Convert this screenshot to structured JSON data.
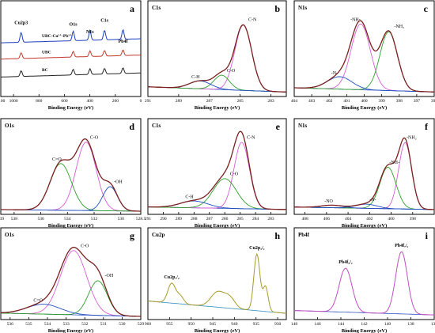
{
  "figure_caption": "",
  "chart_data": [
    {
      "type": "line",
      "panel_label": "a",
      "title": "",
      "xlabel": "Binding Energy (eV)",
      "ylabel": "",
      "xlim": [
        1100,
        0
      ],
      "x_reversed": true,
      "xticks": [
        1100,
        1000,
        800,
        600,
        400,
        200,
        0
      ],
      "grid": false,
      "annotations": [
        {
          "text": "Cu2p3",
          "x": 940,
          "level": 0.85
        },
        {
          "text": "O1s",
          "x": 531,
          "level": 0.83
        },
        {
          "text": "N1s",
          "x": 399,
          "level": 0.74
        },
        {
          "text": "C1s",
          "x": 285,
          "level": 0.88
        },
        {
          "text": "Pb4f",
          "x": 140,
          "level": 0.62
        }
      ],
      "series": [
        {
          "name": "UBC-Cu²⁺-Pb²⁺",
          "color": "#1f3fbf",
          "offset": 0.62
        },
        {
          "name": "UBC",
          "color": "#c0392b",
          "offset": 0.42
        },
        {
          "name": "BC",
          "color": "#222222",
          "offset": 0.2
        }
      ]
    },
    {
      "type": "line",
      "panel_label": "b",
      "title": "C1s",
      "xlabel": "Binding Energy (eV)",
      "ylabel": "",
      "xlim": [
        291,
        282
      ],
      "x_reversed": true,
      "xticks": [
        291,
        289,
        287,
        285,
        283
      ],
      "grid": false,
      "peaks": [
        {
          "label": "C-N",
          "center": 284.8,
          "height": 1.0,
          "width": 0.55,
          "color": "#d65fd6"
        },
        {
          "label": "C-O",
          "center": 286.2,
          "height": 0.22,
          "width": 0.5,
          "color": "#2ca02c"
        },
        {
          "label": "C-H",
          "center": 287.6,
          "height": 0.12,
          "width": 0.7,
          "color": "#1f4fbf"
        }
      ],
      "background": [
        0.1,
        0.02
      ]
    },
    {
      "type": "line",
      "panel_label": "c",
      "title": "N1s",
      "xlabel": "Binding Energy (eV)",
      "ylabel": "",
      "xlim": [
        404,
        396
      ],
      "x_reversed": true,
      "xticks": [
        404,
        403,
        402,
        401,
        400,
        399,
        398,
        397,
        396
      ],
      "grid": false,
      "peaks": [
        {
          "label": "-NH-",
          "center": 400.2,
          "height": 0.95,
          "width": 0.55,
          "color": "#d65fd6"
        },
        {
          "label": "-NH₂",
          "center": 398.6,
          "height": 0.85,
          "width": 0.5,
          "color": "#2ca02c"
        },
        {
          "label": "-N-",
          "center": 401.4,
          "height": 0.18,
          "width": 0.7,
          "color": "#1f4fbf"
        }
      ],
      "background": [
        0.08,
        0.02
      ]
    },
    {
      "type": "line",
      "panel_label": "d",
      "title": "O1s",
      "xlabel": "Binding Energy (eV)",
      "ylabel": "",
      "xlim": [
        539,
        528.5
      ],
      "x_reversed": true,
      "xticks": [
        539,
        538,
        536,
        534,
        532,
        530,
        528.5
      ],
      "grid": false,
      "peaks": [
        {
          "label": "C-O",
          "center": 532.6,
          "height": 0.85,
          "width": 0.75,
          "color": "#d65fd6"
        },
        {
          "label": "C=O",
          "center": 534.5,
          "height": 0.58,
          "width": 0.8,
          "color": "#2ca02c"
        },
        {
          "label": "-OH",
          "center": 530.8,
          "height": 0.3,
          "width": 0.55,
          "color": "#1f4fbf"
        }
      ],
      "background": [
        0.02,
        0.0
      ]
    },
    {
      "type": "line",
      "panel_label": "e",
      "title": "C1s",
      "xlabel": "Binding Energy (eV)",
      "ylabel": "",
      "xlim": [
        291,
        282
      ],
      "x_reversed": true,
      "xticks": [
        291,
        290,
        289,
        288,
        287,
        286,
        285,
        284,
        283
      ],
      "grid": false,
      "peaks": [
        {
          "label": "C-N",
          "center": 284.9,
          "height": 0.78,
          "width": 0.5,
          "color": "#d65fd6"
        },
        {
          "label": "C-O",
          "center": 286.0,
          "height": 0.35,
          "width": 0.75,
          "color": "#2ca02c"
        },
        {
          "label": "C-H",
          "center": 288.0,
          "height": 0.08,
          "width": 0.9,
          "color": "#1f4fbf"
        }
      ],
      "background": [
        0.05,
        0.02
      ]
    },
    {
      "type": "line",
      "panel_label": "f",
      "title": "N1s",
      "xlabel": "Binding Energy (eV)",
      "ylabel": "",
      "xlim": [
        409,
        396
      ],
      "x_reversed": true,
      "xticks": [
        408,
        406,
        404,
        402,
        400,
        398
      ],
      "grid": false,
      "peaks": [
        {
          "label": "-NH₂",
          "center": 398.7,
          "height": 0.8,
          "width": 0.6,
          "color": "#d65fd6"
        },
        {
          "label": "-NH-",
          "center": 400.3,
          "height": 0.5,
          "width": 0.75,
          "color": "#2ca02c"
        },
        {
          "label": "-N-",
          "center": 402.3,
          "height": 0.05,
          "width": 1.0,
          "color": "#1f4fbf"
        },
        {
          "label": "-NO",
          "center": 405.5,
          "height": 0.03,
          "width": 1.0,
          "color": "#1f4fbf"
        }
      ],
      "background": [
        0.05,
        0.02
      ]
    },
    {
      "type": "line",
      "panel_label": "g",
      "title": "O1s",
      "xlabel": "Binding Energy (eV)",
      "ylabel": "",
      "xlim": [
        536.5,
        529
      ],
      "x_reversed": true,
      "xticks": [
        536,
        535,
        534,
        533,
        532,
        531,
        530,
        529
      ],
      "grid": false,
      "peaks": [
        {
          "label": "C-O",
          "center": 532.6,
          "height": 0.78,
          "width": 0.7,
          "color": "#d65fd6"
        },
        {
          "label": "-OH",
          "center": 531.3,
          "height": 0.42,
          "width": 0.5,
          "color": "#2ca02c"
        },
        {
          "label": "C=O",
          "center": 534.2,
          "height": 0.12,
          "width": 0.9,
          "color": "#1f4fbf"
        }
      ],
      "background": [
        0.04,
        0.0
      ]
    },
    {
      "type": "line",
      "panel_label": "h",
      "title": "Cu2p",
      "xlabel": "Binding Energy (eV)",
      "ylabel": "",
      "xlim": [
        960,
        928
      ],
      "x_reversed": true,
      "xticks": [
        960,
        955,
        950,
        945,
        940,
        935,
        930
      ],
      "grid": false,
      "annotations": [
        {
          "text": "Cu2p₁/₂",
          "x": 954.5
        },
        {
          "text": "Cu2p₃/₂",
          "x": 934.8
        }
      ],
      "peaks": [
        {
          "center": 954.5,
          "height": 0.32,
          "width": 0.9
        },
        {
          "center": 952.5,
          "height": 0.12,
          "width": 0.8
        },
        {
          "center": 943.8,
          "height": 0.25,
          "width": 1.6
        },
        {
          "center": 941.0,
          "height": 0.15,
          "width": 1.2
        },
        {
          "center": 934.8,
          "height": 0.92,
          "width": 0.7
        },
        {
          "center": 932.8,
          "height": 0.4,
          "width": 0.6
        }
      ],
      "colors": {
        "spectrum": "#a79a2a",
        "background": "#2f8fbf"
      },
      "background": [
        0.25,
        0.05
      ]
    },
    {
      "type": "line",
      "panel_label": "i",
      "title": "Pb4f",
      "xlabel": "Binding Energy (eV)",
      "ylabel": "",
      "xlim": [
        148,
        136
      ],
      "x_reversed": true,
      "xticks": [
        148,
        146,
        144,
        142,
        140,
        138,
        136
      ],
      "grid": false,
      "annotations": [
        {
          "text": "Pb4f₅/₂",
          "x": 143.6
        },
        {
          "text": "Pb4f₇/₂",
          "x": 138.8
        }
      ],
      "peaks": [
        {
          "center": 143.6,
          "height": 0.6,
          "width": 0.55
        },
        {
          "center": 138.8,
          "height": 0.85,
          "width": 0.5
        }
      ],
      "colors": {
        "spectrum": "#c04fc0",
        "background": "#2f4fbf"
      },
      "background": [
        0.08,
        0.02
      ]
    }
  ]
}
